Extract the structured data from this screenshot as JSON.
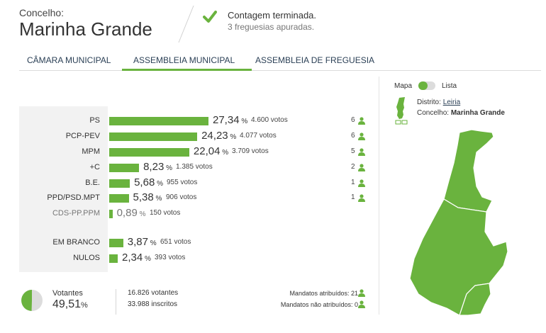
{
  "header": {
    "label": "Concelho:",
    "title": "Marinha Grande",
    "status_title": "Contagem terminada.",
    "status_sub": "3 freguesias apuradas."
  },
  "tabs": [
    {
      "label": "CÂMARA MUNICIPAL",
      "active": false
    },
    {
      "label": "ASSEMBLEIA MUNICIPAL",
      "active": true
    },
    {
      "label": "ASSEMBLEIA DE FREGUESIA",
      "active": false
    }
  ],
  "results": [
    {
      "party": "PS",
      "pct": 27.34,
      "pct_text": "27,34",
      "votes_text": "4.600 votos",
      "seats": "6",
      "bar": true
    },
    {
      "party": "PCP-PEV",
      "pct": 24.23,
      "pct_text": "24,23",
      "votes_text": "4.077 votos",
      "seats": "6",
      "bar": true
    },
    {
      "party": "MPM",
      "pct": 22.04,
      "pct_text": "22,04",
      "votes_text": "3.709 votos",
      "seats": "5",
      "bar": true
    },
    {
      "party": "+C",
      "pct": 8.23,
      "pct_text": "8,23",
      "votes_text": "1.385 votos",
      "seats": "2",
      "bar": true
    },
    {
      "party": "B.E.",
      "pct": 5.68,
      "pct_text": "5,68",
      "votes_text": "955 votos",
      "seats": "1",
      "bar": true
    },
    {
      "party": "PPD/PSD.MPT",
      "pct": 5.38,
      "pct_text": "5,38",
      "votes_text": "906 votos",
      "seats": "1",
      "bar": true
    },
    {
      "party": "CDS-PP.PPM",
      "pct": 0.89,
      "pct_text": "0,89",
      "votes_text": "150 votos",
      "seats": "",
      "bar": true,
      "muted": true
    }
  ],
  "extra_results": [
    {
      "party": "EM BRANCO",
      "pct": 3.87,
      "pct_text": "3,87",
      "votes_text": "651 votos"
    },
    {
      "party": "NULOS",
      "pct": 2.34,
      "pct_text": "2,34",
      "votes_text": "393 votos"
    }
  ],
  "summary": {
    "voters_label": "Votantes",
    "voters_pct": 49.51,
    "voters_pct_text": "49,51",
    "pct_sign": "%",
    "voters_count": "16.826 votantes",
    "registered": "33.988 inscritos",
    "mandates_assigned": "Mandatos atribuídos: 21",
    "mandates_unassigned": "Mandatos não atribuídos: 0"
  },
  "map_panel": {
    "map_label": "Mapa",
    "list_label": "Lista",
    "district_label": "Distrito:",
    "district_value": "Leiria",
    "concelho_label": "Concelho:",
    "concelho_value": "Marinha Grande"
  },
  "colors": {
    "accent": "#6ab33e",
    "tab_text": "#2a3f55"
  }
}
